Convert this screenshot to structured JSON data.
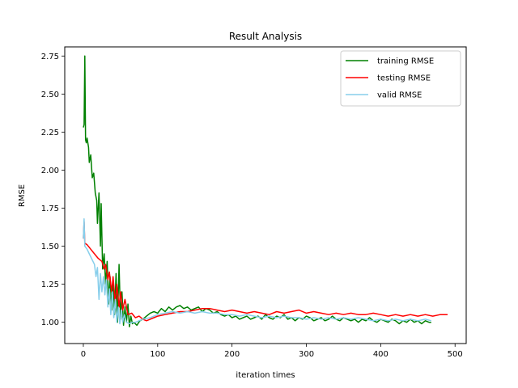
{
  "chart_data": {
    "type": "line",
    "title": "Result Analysis",
    "xlabel": "iteration times",
    "ylabel": "RMSE",
    "xlim": [
      -25,
      515
    ],
    "ylim": [
      0.86,
      2.81
    ],
    "xticks": [
      0,
      100,
      200,
      300,
      400,
      500
    ],
    "yticks": [
      1.0,
      1.25,
      1.5,
      1.75,
      2.0,
      2.25,
      2.5,
      2.75
    ],
    "ytick_labels": [
      "1.00",
      "1.25",
      "1.50",
      "1.75",
      "2.00",
      "2.25",
      "2.50",
      "2.75"
    ],
    "grid": false,
    "legend_position": "top-right",
    "series": [
      {
        "name": "training RMSE",
        "color": "#008000",
        "points": [
          [
            0,
            2.28
          ],
          [
            1,
            2.3
          ],
          [
            2,
            2.75
          ],
          [
            3,
            2.2
          ],
          [
            4,
            2.18
          ],
          [
            5,
            2.21
          ],
          [
            7,
            2.15
          ],
          [
            8,
            2.05
          ],
          [
            10,
            2.1
          ],
          [
            12,
            1.95
          ],
          [
            14,
            1.98
          ],
          [
            16,
            1.85
          ],
          [
            18,
            1.8
          ],
          [
            19,
            1.65
          ],
          [
            21,
            1.85
          ],
          [
            23,
            1.5
          ],
          [
            24,
            1.78
          ],
          [
            26,
            1.35
          ],
          [
            28,
            1.45
          ],
          [
            30,
            1.25
          ],
          [
            32,
            1.4
          ],
          [
            34,
            1.12
          ],
          [
            36,
            1.3
          ],
          [
            38,
            1.08
          ],
          [
            40,
            1.28
          ],
          [
            42,
            1.05
          ],
          [
            44,
            1.32
          ],
          [
            46,
            1.0
          ],
          [
            48,
            1.38
          ],
          [
            50,
            1.02
          ],
          [
            52,
            1.2
          ],
          [
            54,
            0.98
          ],
          [
            56,
            1.1
          ],
          [
            58,
            1.0
          ],
          [
            60,
            1.12
          ],
          [
            62,
            0.97
          ],
          [
            64,
            1.04
          ],
          [
            66,
            0.99
          ],
          [
            68,
            1.0
          ],
          [
            72,
            0.98
          ],
          [
            76,
            1.01
          ],
          [
            80,
            1.02
          ],
          [
            85,
            1.04
          ],
          [
            90,
            1.06
          ],
          [
            95,
            1.07
          ],
          [
            100,
            1.06
          ],
          [
            105,
            1.09
          ],
          [
            110,
            1.07
          ],
          [
            115,
            1.1
          ],
          [
            120,
            1.08
          ],
          [
            125,
            1.1
          ],
          [
            130,
            1.11
          ],
          [
            135,
            1.09
          ],
          [
            140,
            1.1
          ],
          [
            145,
            1.08
          ],
          [
            150,
            1.09
          ],
          [
            155,
            1.1
          ],
          [
            160,
            1.07
          ],
          [
            165,
            1.09
          ],
          [
            170,
            1.08
          ],
          [
            175,
            1.06
          ],
          [
            180,
            1.07
          ],
          [
            185,
            1.05
          ],
          [
            190,
            1.04
          ],
          [
            195,
            1.05
          ],
          [
            200,
            1.03
          ],
          [
            205,
            1.04
          ],
          [
            210,
            1.02
          ],
          [
            215,
            1.03
          ],
          [
            220,
            1.04
          ],
          [
            225,
            1.02
          ],
          [
            230,
            1.03
          ],
          [
            235,
            1.04
          ],
          [
            240,
            1.02
          ],
          [
            245,
            1.05
          ],
          [
            250,
            1.03
          ],
          [
            255,
            1.02
          ],
          [
            260,
            1.04
          ],
          [
            265,
            1.03
          ],
          [
            270,
            1.05
          ],
          [
            275,
            1.02
          ],
          [
            280,
            1.03
          ],
          [
            285,
            1.01
          ],
          [
            290,
            1.03
          ],
          [
            295,
            1.02
          ],
          [
            300,
            1.04
          ],
          [
            305,
            1.03
          ],
          [
            310,
            1.01
          ],
          [
            315,
            1.02
          ],
          [
            320,
            1.03
          ],
          [
            325,
            1.01
          ],
          [
            330,
            1.02
          ],
          [
            335,
            1.04
          ],
          [
            340,
            1.02
          ],
          [
            345,
            1.01
          ],
          [
            350,
            1.03
          ],
          [
            355,
            1.02
          ],
          [
            360,
            1.01
          ],
          [
            365,
            1.02
          ],
          [
            370,
            1.0
          ],
          [
            375,
            1.02
          ],
          [
            380,
            1.01
          ],
          [
            385,
            1.03
          ],
          [
            390,
            1.01
          ],
          [
            395,
            1.0
          ],
          [
            400,
            1.02
          ],
          [
            405,
            1.01
          ],
          [
            410,
            1.0
          ],
          [
            415,
            1.02
          ],
          [
            420,
            1.01
          ],
          [
            425,
            0.99
          ],
          [
            430,
            1.01
          ],
          [
            435,
            1.0
          ],
          [
            440,
            1.02
          ],
          [
            445,
            1.0
          ],
          [
            450,
            1.01
          ],
          [
            455,
            0.99
          ],
          [
            460,
            1.01
          ],
          [
            465,
            1.0
          ],
          [
            468,
            1.0
          ]
        ]
      },
      {
        "name": "testing RMSE",
        "color": "#ff0000",
        "points": [
          [
            0,
            1.55
          ],
          [
            1,
            1.66
          ],
          [
            2,
            1.52
          ],
          [
            5,
            1.51
          ],
          [
            10,
            1.48
          ],
          [
            15,
            1.45
          ],
          [
            20,
            1.42
          ],
          [
            25,
            1.4
          ],
          [
            28,
            1.35
          ],
          [
            30,
            1.38
          ],
          [
            33,
            1.28
          ],
          [
            35,
            1.33
          ],
          [
            38,
            1.2
          ],
          [
            40,
            1.3
          ],
          [
            43,
            1.12
          ],
          [
            45,
            1.25
          ],
          [
            48,
            1.1
          ],
          [
            50,
            1.2
          ],
          [
            53,
            1.08
          ],
          [
            56,
            1.15
          ],
          [
            60,
            1.05
          ],
          [
            65,
            1.06
          ],
          [
            70,
            1.03
          ],
          [
            75,
            1.04
          ],
          [
            80,
            1.02
          ],
          [
            85,
            1.01
          ],
          [
            90,
            1.02
          ],
          [
            95,
            1.03
          ],
          [
            100,
            1.04
          ],
          [
            110,
            1.05
          ],
          [
            120,
            1.06
          ],
          [
            130,
            1.07
          ],
          [
            140,
            1.07
          ],
          [
            150,
            1.08
          ],
          [
            160,
            1.09
          ],
          [
            170,
            1.09
          ],
          [
            180,
            1.08
          ],
          [
            190,
            1.07
          ],
          [
            200,
            1.08
          ],
          [
            210,
            1.07
          ],
          [
            220,
            1.06
          ],
          [
            230,
            1.07
          ],
          [
            240,
            1.06
          ],
          [
            250,
            1.05
          ],
          [
            260,
            1.07
          ],
          [
            270,
            1.06
          ],
          [
            280,
            1.07
          ],
          [
            290,
            1.08
          ],
          [
            300,
            1.06
          ],
          [
            310,
            1.07
          ],
          [
            320,
            1.06
          ],
          [
            330,
            1.05
          ],
          [
            340,
            1.06
          ],
          [
            350,
            1.05
          ],
          [
            360,
            1.06
          ],
          [
            370,
            1.05
          ],
          [
            380,
            1.05
          ],
          [
            390,
            1.06
          ],
          [
            400,
            1.05
          ],
          [
            410,
            1.04
          ],
          [
            420,
            1.05
          ],
          [
            430,
            1.04
          ],
          [
            440,
            1.05
          ],
          [
            450,
            1.04
          ],
          [
            460,
            1.05
          ],
          [
            470,
            1.04
          ],
          [
            480,
            1.05
          ],
          [
            490,
            1.05
          ]
        ]
      },
      {
        "name": "valid RMSE",
        "color": "#87ceeb",
        "points": [
          [
            0,
            1.55
          ],
          [
            1,
            1.68
          ],
          [
            2,
            1.5
          ],
          [
            5,
            1.48
          ],
          [
            8,
            1.45
          ],
          [
            10,
            1.43
          ],
          [
            13,
            1.4
          ],
          [
            15,
            1.38
          ],
          [
            17,
            1.3
          ],
          [
            19,
            1.36
          ],
          [
            21,
            1.15
          ],
          [
            23,
            1.32
          ],
          [
            25,
            1.2
          ],
          [
            27,
            1.3
          ],
          [
            29,
            1.18
          ],
          [
            31,
            1.28
          ],
          [
            33,
            1.1
          ],
          [
            35,
            1.22
          ],
          [
            37,
            1.05
          ],
          [
            39,
            1.2
          ],
          [
            41,
            1.03
          ],
          [
            43,
            1.15
          ],
          [
            45,
            1.0
          ],
          [
            47,
            1.1
          ],
          [
            49,
            0.99
          ],
          [
            51,
            1.08
          ],
          [
            53,
            1.0
          ],
          [
            55,
            1.05
          ],
          [
            58,
            1.0
          ],
          [
            62,
            0.99
          ],
          [
            66,
            1.0
          ],
          [
            70,
            1.0
          ],
          [
            75,
            1.01
          ],
          [
            80,
            1.02
          ],
          [
            90,
            1.03
          ],
          [
            100,
            1.05
          ],
          [
            110,
            1.06
          ],
          [
            120,
            1.07
          ],
          [
            130,
            1.06
          ],
          [
            140,
            1.07
          ],
          [
            150,
            1.06
          ],
          [
            160,
            1.07
          ],
          [
            170,
            1.06
          ],
          [
            180,
            1.06
          ],
          [
            190,
            1.05
          ],
          [
            200,
            1.05
          ],
          [
            210,
            1.04
          ],
          [
            220,
            1.05
          ],
          [
            230,
            1.04
          ],
          [
            240,
            1.03
          ],
          [
            250,
            1.04
          ],
          [
            260,
            1.03
          ],
          [
            270,
            1.04
          ],
          [
            280,
            1.03
          ],
          [
            290,
            1.03
          ],
          [
            300,
            1.02
          ],
          [
            310,
            1.03
          ],
          [
            320,
            1.02
          ],
          [
            330,
            1.03
          ],
          [
            340,
            1.02
          ],
          [
            350,
            1.03
          ],
          [
            360,
            1.02
          ],
          [
            370,
            1.03
          ],
          [
            380,
            1.02
          ],
          [
            390,
            1.01
          ],
          [
            400,
            1.02
          ],
          [
            410,
            1.01
          ],
          [
            420,
            1.02
          ],
          [
            430,
            1.01
          ],
          [
            440,
            1.02
          ],
          [
            450,
            1.01
          ],
          [
            460,
            1.02
          ],
          [
            468,
            1.01
          ]
        ]
      }
    ]
  }
}
